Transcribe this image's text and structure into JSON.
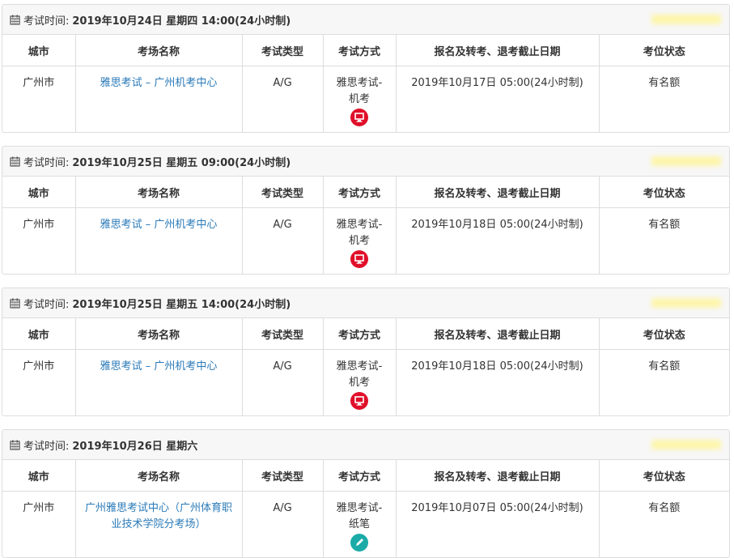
{
  "colors": {
    "link": "#2a7ab8",
    "computer_icon": "#e0102a",
    "paper_icon": "#1aaba8"
  },
  "headers": {
    "city": "城市",
    "venue": "考场名称",
    "type": "考试类型",
    "mode": "考试方式",
    "deadline": "报名及转考、退考截止日期",
    "status": "考位状态"
  },
  "sessions": [
    {
      "time_label": "考试时间:",
      "time": "2019年10月24日 星期四 14:00(24小时制)",
      "city": "广州市",
      "venue": "雅思考试 – 广州机考中心",
      "type": "A/G",
      "mode": "雅思考试-机考",
      "mode_icon": "computer-icon",
      "deadline": "2019年10月17日 05:00(24小时制)",
      "status": "有名额"
    },
    {
      "time_label": "考试时间:",
      "time": "2019年10月25日 星期五 09:00(24小时制)",
      "city": "广州市",
      "venue": "雅思考试 – 广州机考中心",
      "type": "A/G",
      "mode": "雅思考试-机考",
      "mode_icon": "computer-icon",
      "deadline": "2019年10月18日 05:00(24小时制)",
      "status": "有名额"
    },
    {
      "time_label": "考试时间:",
      "time": "2019年10月25日 星期五 14:00(24小时制)",
      "city": "广州市",
      "venue": "雅思考试 – 广州机考中心",
      "type": "A/G",
      "mode": "雅思考试-机考",
      "mode_icon": "computer-icon",
      "deadline": "2019年10月18日 05:00(24小时制)",
      "status": "有名额"
    },
    {
      "time_label": "考试时间:",
      "time": "2019年10月26日 星期六",
      "city": "广州市",
      "venue": "广州雅思考试中心（广州体育职业技术学院分考场）",
      "type": "A/G",
      "mode": "雅思考试-纸笔",
      "mode_icon": "pencil-icon",
      "deadline": "2019年10月07日 05:00(24小时制)",
      "status": "有名额"
    }
  ]
}
